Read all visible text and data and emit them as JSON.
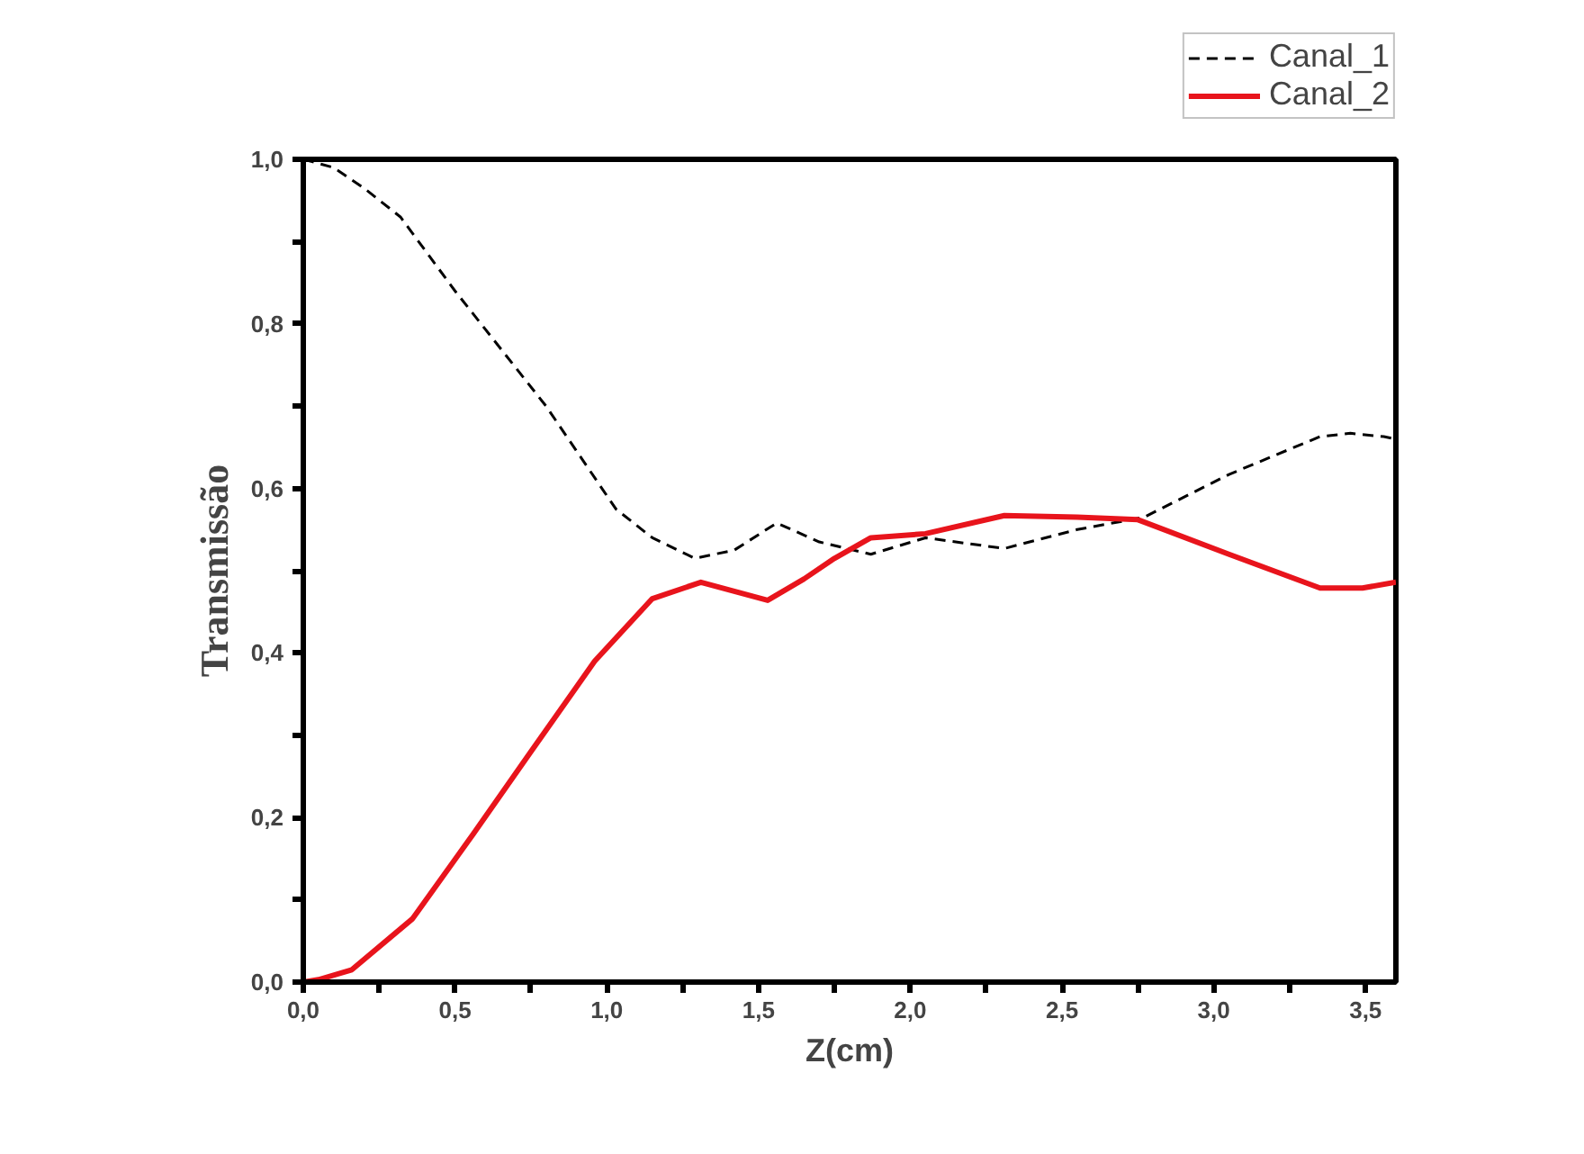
{
  "chart_data": {
    "type": "line",
    "xlabel": "Z(cm)",
    "ylabel": "Transmissão",
    "xlim": [
      0,
      3.6
    ],
    "ylim": [
      0,
      1.0
    ],
    "xticks": [
      {
        "value": 0,
        "label": "0,0"
      },
      {
        "value": 0.25,
        "label": null
      },
      {
        "value": 0.5,
        "label": "0,5"
      },
      {
        "value": 0.75,
        "label": null
      },
      {
        "value": 1.0,
        "label": "1,0"
      },
      {
        "value": 1.25,
        "label": null
      },
      {
        "value": 1.5,
        "label": "1,5"
      },
      {
        "value": 1.75,
        "label": null
      },
      {
        "value": 2.0,
        "label": "2,0"
      },
      {
        "value": 2.25,
        "label": null
      },
      {
        "value": 2.5,
        "label": "2,5"
      },
      {
        "value": 2.75,
        "label": null
      },
      {
        "value": 3.0,
        "label": "3,0"
      },
      {
        "value": 3.25,
        "label": null
      },
      {
        "value": 3.5,
        "label": "3,5"
      }
    ],
    "yticks": [
      {
        "value": 0,
        "label": "0,0"
      },
      {
        "value": 0.1,
        "label": null
      },
      {
        "value": 0.2,
        "label": "0,2"
      },
      {
        "value": 0.3,
        "label": null
      },
      {
        "value": 0.4,
        "label": "0,4"
      },
      {
        "value": 0.5,
        "label": null
      },
      {
        "value": 0.6,
        "label": "0,6"
      },
      {
        "value": 0.7,
        "label": null
      },
      {
        "value": 0.8,
        "label": "0,8"
      },
      {
        "value": 0.9,
        "label": null
      },
      {
        "value": 1.0,
        "label": "1,0"
      }
    ],
    "grid": false,
    "legend": "top right",
    "series": [
      {
        "name": "Canal_1",
        "color": "#000000",
        "line_style": "dashed",
        "x": [
          0.0,
          0.1,
          0.2,
          0.32,
          0.5,
          0.8,
          1.03,
          1.15,
          1.29,
          1.42,
          1.56,
          1.7,
          1.87,
          2.05,
          2.31,
          2.55,
          2.77,
          3.05,
          3.35,
          3.45,
          3.56,
          3.6
        ],
        "values": [
          1.0,
          0.99,
          0.965,
          0.93,
          0.84,
          0.7,
          0.575,
          0.54,
          0.515,
          0.525,
          0.558,
          0.535,
          0.52,
          0.54,
          0.527,
          0.55,
          0.565,
          0.617,
          0.663,
          0.667,
          0.663,
          0.66
        ]
      },
      {
        "name": "Canal_2",
        "color": "#e8141c",
        "line_style": "solid",
        "x": [
          0.0,
          0.05,
          0.16,
          0.36,
          0.56,
          0.75,
          0.96,
          1.15,
          1.31,
          1.42,
          1.53,
          1.65,
          1.75,
          1.87,
          2.05,
          2.31,
          2.55,
          2.75,
          3.05,
          3.35,
          3.49,
          3.6
        ],
        "values": [
          0.0,
          0.003,
          0.015,
          0.077,
          0.18,
          0.28,
          0.39,
          0.466,
          0.486,
          0.475,
          0.464,
          0.49,
          0.515,
          0.54,
          0.545,
          0.567,
          0.565,
          0.562,
          0.52,
          0.479,
          0.479,
          0.486
        ]
      }
    ]
  }
}
